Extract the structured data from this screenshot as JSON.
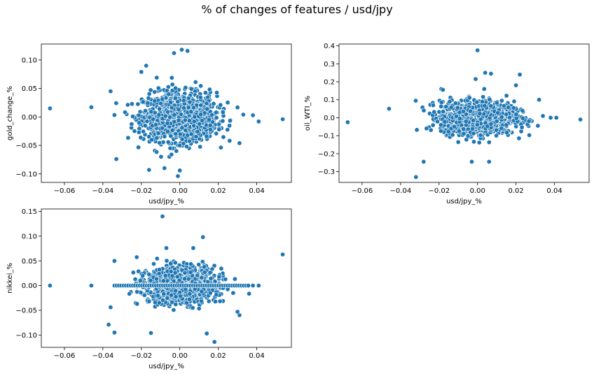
{
  "suptitle": "% of changes of features / usd/jpy",
  "colors": {
    "marker": "#1f77b4",
    "marker_edge": "#ffffff",
    "axes": "#000000"
  },
  "chart_data": [
    {
      "type": "scatter",
      "title": "",
      "xlabel": "usd/jpy_%",
      "ylabel": "gold_change_%",
      "xlim": [
        -0.072,
        0.058
      ],
      "ylim": [
        -0.115,
        0.128
      ],
      "xticks": [
        -0.06,
        -0.04,
        -0.02,
        0.0,
        0.02,
        0.04
      ],
      "xtick_labels": [
        "−0.06",
        "−0.04",
        "−0.02",
        "0.00",
        "0.02",
        "0.04"
      ],
      "yticks": [
        -0.1,
        -0.05,
        0.0,
        0.05,
        0.1
      ],
      "ytick_labels": [
        "−0.10",
        "−0.05",
        "0.00",
        "0.05",
        "0.10"
      ],
      "grid": false,
      "outliers": [
        [
          -0.0675,
          0.015
        ],
        [
          -0.046,
          0.017
        ],
        [
          0.0535,
          -0.004
        ],
        [
          0.041,
          -0.008
        ],
        [
          0.038,
          0.003
        ],
        [
          -0.036,
          0.045
        ],
        [
          -0.033,
          -0.074
        ],
        [
          -0.0175,
          0.09
        ],
        [
          -0.016,
          -0.093
        ],
        [
          -0.008,
          -0.09
        ],
        [
          -0.001,
          -0.104
        ],
        [
          0.001,
          0.118
        ],
        [
          -0.003,
          0.112
        ],
        [
          0.004,
          0.116
        ],
        [
          0.0,
          -0.094
        ],
        [
          0.031,
          -0.046
        ],
        [
          0.033,
          0.004
        ],
        [
          -0.02,
          0.079
        ],
        [
          -0.012,
          0.069
        ]
      ],
      "cluster": {
        "n": 1300,
        "center_x": 0.0,
        "center_y": 0.0,
        "spread_x": 0.0095,
        "spread_y": 0.021,
        "x_range": [
          -0.034,
          0.036
        ],
        "y_range": [
          -0.07,
          0.085
        ],
        "step": null,
        "zero_row": false
      }
    },
    {
      "type": "scatter",
      "title": "",
      "xlabel": "usd/jpy_%",
      "ylabel": "oil_WTI_%",
      "xlim": [
        -0.072,
        0.058
      ],
      "ylim": [
        -0.36,
        0.41
      ],
      "xticks": [
        -0.06,
        -0.04,
        -0.02,
        0.0,
        0.02,
        0.04
      ],
      "xtick_labels": [
        "−0.06",
        "−0.04",
        "−0.02",
        "0.00",
        "0.02",
        "0.04"
      ],
      "yticks": [
        -0.3,
        -0.2,
        -0.1,
        0.0,
        0.1,
        0.2,
        0.3,
        0.4
      ],
      "ytick_labels": [
        "−0.3",
        "−0.2",
        "−0.1",
        "0.0",
        "0.1",
        "0.2",
        "0.3",
        "0.4"
      ],
      "grid": false,
      "outliers": [
        [
          -0.0675,
          -0.025
        ],
        [
          -0.046,
          0.05
        ],
        [
          0.0535,
          -0.01
        ],
        [
          0.041,
          0.0
        ],
        [
          0.038,
          0.0
        ],
        [
          -0.032,
          -0.33
        ],
        [
          -0.028,
          -0.245
        ],
        [
          -0.003,
          -0.245
        ],
        [
          0.006,
          -0.245
        ],
        [
          0.0,
          0.375
        ],
        [
          0.004,
          0.25
        ],
        [
          0.007,
          0.245
        ],
        [
          0.022,
          0.24
        ],
        [
          -0.001,
          0.215
        ],
        [
          0.02,
          0.18
        ],
        [
          0.032,
          0.1
        ],
        [
          -0.018,
          0.155
        ],
        [
          0.034,
          0.01
        ]
      ],
      "cluster": {
        "n": 1300,
        "center_x": 0.0,
        "center_y": 0.0,
        "spread_x": 0.0095,
        "spread_y": 0.045,
        "x_range": [
          -0.036,
          0.036
        ],
        "y_range": [
          -0.14,
          0.16
        ],
        "step": null,
        "zero_row": false
      }
    },
    {
      "type": "scatter",
      "title": "",
      "xlabel": "usd/jpy_%",
      "ylabel": "nikkei_%",
      "xlim": [
        -0.072,
        0.058
      ],
      "ylim": [
        -0.125,
        0.155
      ],
      "xticks": [
        -0.06,
        -0.04,
        -0.02,
        0.0,
        0.02,
        0.04
      ],
      "xtick_labels": [
        "−0.06",
        "−0.04",
        "−0.02",
        "0.00",
        "0.02",
        "0.04"
      ],
      "yticks": [
        -0.1,
        -0.05,
        0.0,
        0.05,
        0.1,
        0.15
      ],
      "ytick_labels": [
        "−0.10",
        "−0.05",
        "0.00",
        "0.05",
        "0.10",
        "0.15"
      ],
      "grid": false,
      "outliers": [
        [
          -0.0675,
          0.0
        ],
        [
          -0.046,
          0.0
        ],
        [
          0.0535,
          0.063
        ],
        [
          0.041,
          0.0
        ],
        [
          0.038,
          0.0
        ],
        [
          -0.009,
          0.14
        ],
        [
          0.012,
          0.098
        ],
        [
          -0.037,
          -0.079
        ],
        [
          -0.034,
          -0.095
        ],
        [
          -0.015,
          -0.096
        ],
        [
          0.018,
          -0.114
        ],
        [
          0.014,
          -0.097
        ],
        [
          -0.034,
          0.05
        ],
        [
          0.031,
          -0.06
        ],
        [
          0.03,
          -0.053
        ],
        [
          -0.007,
          0.076
        ],
        [
          0.007,
          0.076
        ],
        [
          -0.036,
          -0.044
        ]
      ],
      "cluster": {
        "n": 1300,
        "center_x": 0.0,
        "center_y": 0.0,
        "spread_x": 0.0095,
        "spread_y": 0.018,
        "x_range": [
          -0.034,
          0.036
        ],
        "y_range": [
          -0.07,
          0.08
        ],
        "step": 0.0005,
        "zero_row": true
      }
    }
  ]
}
